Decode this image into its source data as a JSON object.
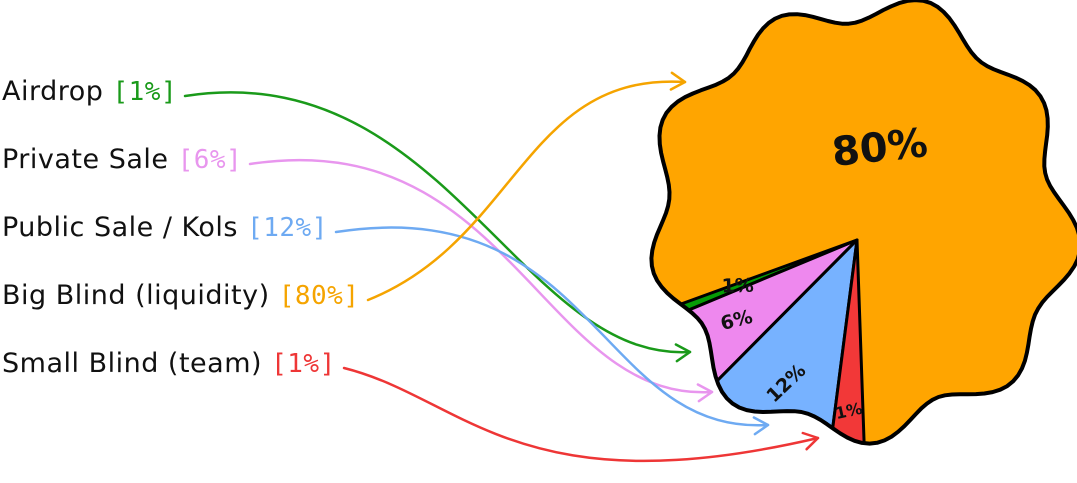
{
  "chart_data": {
    "type": "pie",
    "slices": [
      {
        "label": "Big Blind (liquidity)",
        "tag": "[80%]",
        "value": 80,
        "slice_label": "80%",
        "color": "#ffa500",
        "legend_color": "#f5a400"
      },
      {
        "label": "Airdrop",
        "tag": "[1%]",
        "value": 1,
        "slice_label": "1%",
        "color": "#069c06",
        "legend_color": "#1a9a1a"
      },
      {
        "label": "Private Sale",
        "tag": "[6%]",
        "value": 6,
        "slice_label": "6%",
        "color": "#ee88ee",
        "legend_color": "#e896ee"
      },
      {
        "label": "Public Sale / Kols",
        "tag": "[12%]",
        "value": 12,
        "slice_label": "12%",
        "color": "#77b2ff",
        "legend_color": "#6eaaf2"
      },
      {
        "label": "Small Blind (team)",
        "tag": "[1%]",
        "value": 1,
        "slice_label": "1%",
        "color": "#f23838",
        "legend_color": "#ee3636"
      }
    ],
    "legend_order": [
      "Airdrop",
      "Private Sale",
      "Public Sale / Kols",
      "Big Blind (liquidity)",
      "Small Blind (team)"
    ],
    "outline_color": "#000000",
    "legend": "left"
  }
}
